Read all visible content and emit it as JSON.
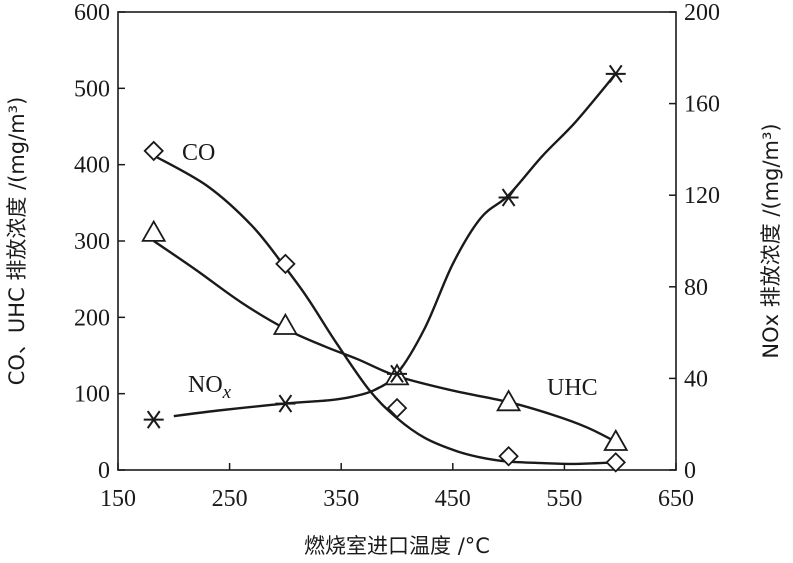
{
  "chart_data": {
    "type": "line",
    "x_label": "燃烧室进口温度 /°C",
    "x_ticks": [
      150,
      250,
      350,
      450,
      550,
      650
    ],
    "xlim": [
      150,
      650
    ],
    "y_left_label": "CO、UHC 排放浓度 /(mg/m³)",
    "y_left_ticks": [
      0,
      100,
      200,
      300,
      400,
      500,
      600
    ],
    "y_left_lim": [
      0,
      600
    ],
    "y_right_label": "NOx 排放浓度 /(mg/m³)",
    "y_right_ticks": [
      0,
      40,
      80,
      120,
      160,
      200
    ],
    "y_right_lim": [
      0,
      200
    ],
    "series": [
      {
        "name": "CO",
        "axis": "left",
        "marker": "diamond",
        "x": [
          182,
          300,
          400,
          500,
          596
        ],
        "y": [
          418,
          270,
          81,
          18,
          10
        ],
        "curve_x": [
          182,
          230,
          270,
          300,
          320,
          345,
          375,
          400,
          425,
          455,
          480,
          500,
          530,
          560,
          596
        ],
        "curve_y": [
          412,
          372,
          320,
          265,
          225,
          168,
          105,
          68,
          42,
          24,
          15,
          11,
          9,
          8,
          10
        ]
      },
      {
        "name": "UHC",
        "axis": "left",
        "marker": "triangle",
        "x": [
          182,
          300,
          400,
          500,
          596
        ],
        "y": [
          311,
          189,
          123,
          89,
          37
        ],
        "curve_x": [
          182,
          220,
          260,
          300,
          335,
          365,
          400,
          450,
          500,
          540,
          570,
          596
        ],
        "curve_y": [
          300,
          262,
          220,
          185,
          162,
          145,
          123,
          104,
          89,
          72,
          56,
          37
        ]
      },
      {
        "name": "NOx",
        "axis": "right",
        "marker": "asterisk",
        "x": [
          182,
          300,
          400,
          500,
          596
        ],
        "y": [
          22,
          29,
          42,
          119,
          173
        ],
        "curve_x": [
          200,
          240,
          300,
          340,
          360,
          380,
          400,
          425,
          450,
          475,
          500,
          530,
          560,
          596
        ],
        "curve_y": [
          23.5,
          26,
          29,
          30.5,
          32,
          35,
          42,
          62,
          90,
          110,
          120,
          137,
          152,
          173
        ]
      }
    ],
    "labels": {
      "co": "CO",
      "uhc": "UHC",
      "nox_main": "NO",
      "nox_sub": "x"
    },
    "grid": false
  }
}
